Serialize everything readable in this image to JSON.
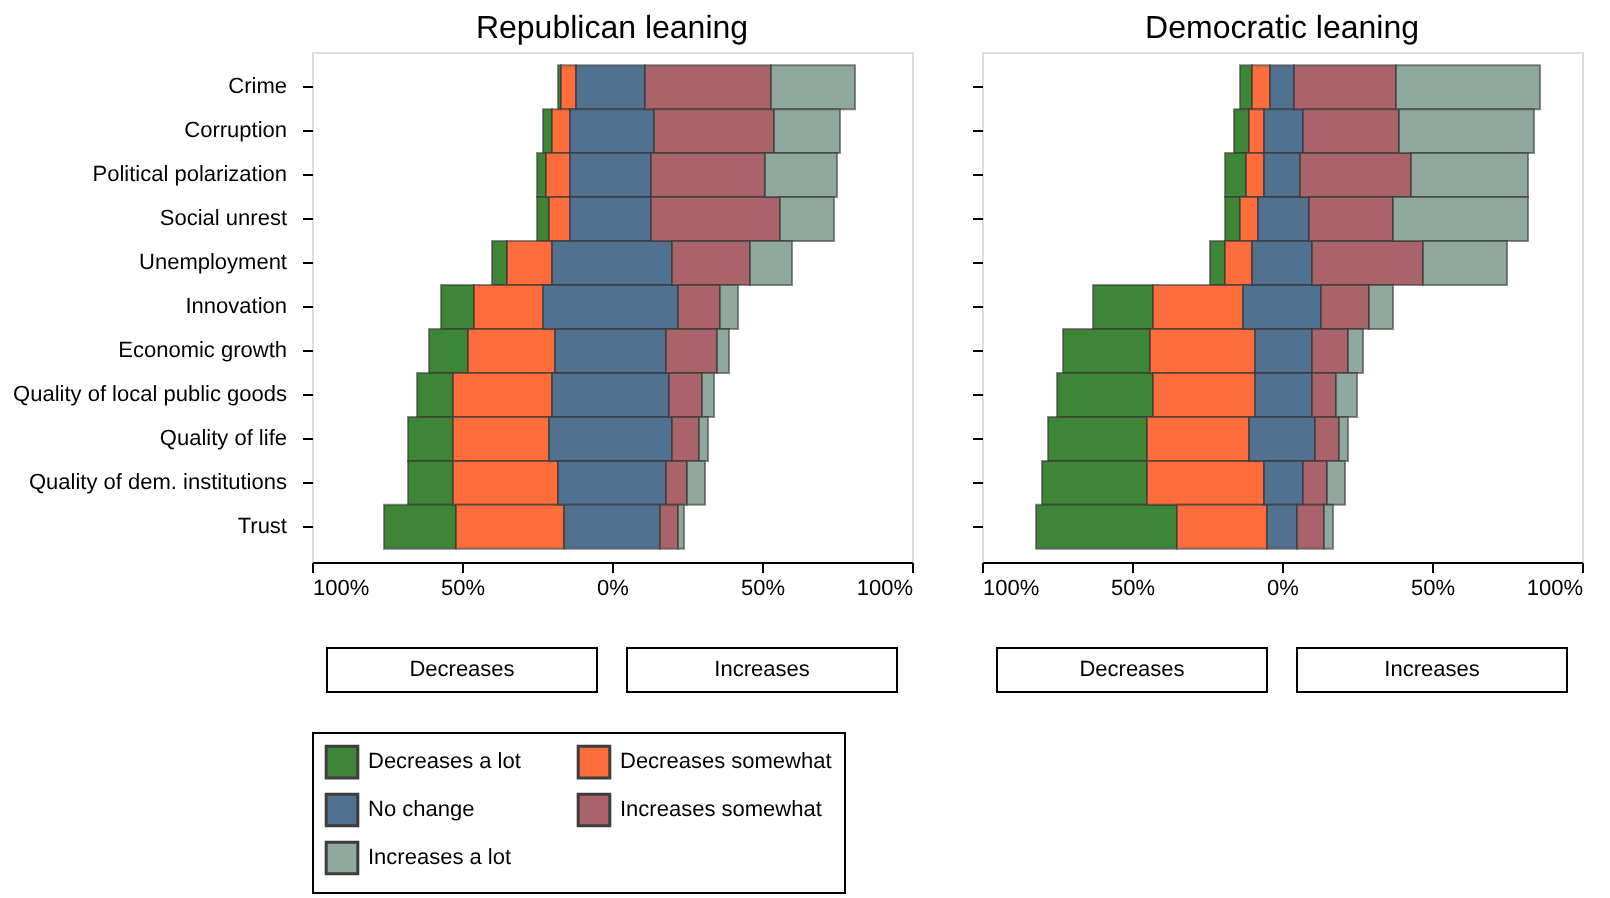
{
  "chart_data": [
    {
      "type": "bar",
      "orientation": "horizontal",
      "title": "Republican leaning",
      "categories": [
        "Crime",
        "Corruption",
        "Political polarization",
        "Social unrest",
        "Unemployment",
        "Innovation",
        "Economic growth",
        "Quality of local public goods",
        "Quality of life",
        "Quality of dem. institutions",
        "Trust"
      ],
      "series": [
        {
          "name": "Decreases a lot",
          "color": "#33802e",
          "base": [
            -18,
            -23,
            -25,
            -25,
            -40,
            -57,
            -61,
            -65,
            -68,
            -68,
            -76
          ],
          "values": [
            1,
            3,
            3,
            4,
            5,
            11,
            13,
            12,
            15,
            15,
            24
          ]
        },
        {
          "name": "Decreases somewhat",
          "color": "#ff6633",
          "base": [
            -17,
            -20,
            -22,
            -21,
            -35,
            -46,
            -48,
            -53,
            -53,
            -53,
            -52
          ],
          "values": [
            5,
            6,
            8,
            7,
            15,
            23,
            29,
            33,
            32,
            35,
            36
          ]
        },
        {
          "name": "No change",
          "color": "#476a8a",
          "base": [
            -12,
            -14,
            -14,
            -14,
            -20,
            -23,
            -19,
            -20,
            -21,
            -18,
            -16
          ],
          "values": [
            23,
            28,
            27,
            27,
            40,
            45,
            37,
            39,
            41,
            36,
            32
          ]
        },
        {
          "name": "Increases somewhat",
          "color": "#a65c62",
          "base": [
            11,
            14,
            13,
            13,
            20,
            22,
            18,
            19,
            20,
            18,
            16
          ],
          "values": [
            42,
            40,
            38,
            43,
            26,
            14,
            17,
            11,
            9,
            7,
            6
          ]
        },
        {
          "name": "Increases a lot",
          "color": "#8aa59a",
          "base": [
            53,
            54,
            51,
            56,
            46,
            36,
            35,
            30,
            29,
            25,
            22
          ],
          "values": [
            28,
            22,
            24,
            18,
            14,
            6,
            4,
            4,
            3,
            6,
            2
          ]
        }
      ],
      "xlim": [
        -100,
        100
      ],
      "xticks": [
        {
          "value": -100,
          "label": "100%"
        },
        {
          "value": -50,
          "label": "50%"
        },
        {
          "value": 0,
          "label": "0%"
        },
        {
          "value": 50,
          "label": "50%"
        },
        {
          "value": 100,
          "label": "100%"
        }
      ],
      "annotations": [
        "Decreases",
        "Increases"
      ],
      "legend": "bottom"
    },
    {
      "type": "bar",
      "orientation": "horizontal",
      "title": "Democratic leaning",
      "categories": [
        null,
        null,
        null,
        null,
        null,
        null,
        null,
        null,
        null,
        null,
        null
      ],
      "series": [
        {
          "color": "#33802e",
          "base": [
            -14,
            -16,
            -19,
            -19,
            -24,
            -63,
            -73,
            -75,
            -78,
            -80,
            -82
          ],
          "values": [
            4,
            5,
            7,
            5,
            5,
            20,
            29,
            32,
            33,
            35,
            47
          ]
        },
        {
          "color": "#ff6633",
          "base": [
            -10,
            -11,
            -12,
            -14,
            -19,
            -43,
            -44,
            -43,
            -45,
            -45,
            -35
          ],
          "values": [
            6,
            5,
            6,
            6,
            9,
            30,
            35,
            34,
            34,
            39,
            30
          ]
        },
        {
          "color": "#476a8a",
          "base": [
            -4,
            -6,
            -6,
            -8,
            -10,
            -13,
            -9,
            -9,
            -11,
            -6,
            -5
          ],
          "values": [
            8,
            13,
            12,
            17,
            20,
            26,
            19,
            19,
            22,
            13,
            10
          ]
        },
        {
          "color": "#a65c62",
          "base": [
            4,
            7,
            6,
            9,
            10,
            13,
            10,
            10,
            11,
            7,
            5
          ],
          "values": [
            34,
            32,
            37,
            28,
            37,
            16,
            12,
            8,
            8,
            8,
            9
          ]
        },
        {
          "color": "#8aa59a",
          "base": [
            38,
            39,
            43,
            37,
            47,
            29,
            22,
            18,
            19,
            15,
            14
          ],
          "values": [
            48,
            45,
            39,
            45,
            28,
            8,
            5,
            7,
            3,
            6,
            3
          ]
        }
      ],
      "xlim": [
        -100,
        100
      ],
      "xticks": [
        {
          "value": -100,
          "label": "100%"
        },
        {
          "value": -50,
          "label": "50%"
        },
        {
          "value": 0,
          "label": "0%"
        },
        {
          "value": 50,
          "label": "50%"
        },
        {
          "value": 100,
          "label": "100%"
        }
      ],
      "annotations": [
        "Decreases",
        "Increases"
      ]
    }
  ]
}
